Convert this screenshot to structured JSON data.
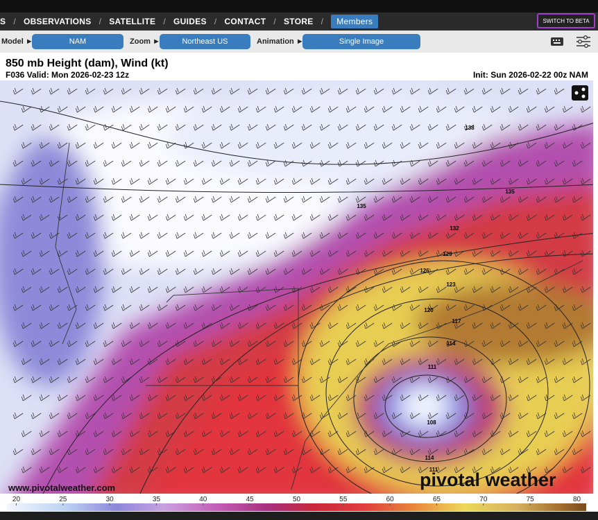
{
  "nav": {
    "items": [
      "S",
      "OBSERVATIONS",
      "SATELLITE",
      "GUIDES",
      "CONTACT",
      "STORE"
    ],
    "members": "Members",
    "beta": "SWITCH TO BETA"
  },
  "toolbar": {
    "model": {
      "label": "Model",
      "value": "NAM"
    },
    "zoom": {
      "label": "Zoom",
      "value": "Northeast US"
    },
    "animation": {
      "label": "Animation",
      "value": "Single Image"
    }
  },
  "map": {
    "title": "850 mb Height (dam), Wind (kt)",
    "valid": "F036 Valid: Mon 2026-02-23 12z",
    "init": "Init: Sun 2026-02-22 00z NAM",
    "contour_labels": [
      138,
      135,
      135,
      132,
      129,
      126,
      123,
      120,
      117,
      114,
      111,
      108,
      114,
      111
    ],
    "watermark_url": "www.pivotalweather.com",
    "watermark_logo": "pivotal weather"
  },
  "colorbar": {
    "lim": [
      19,
      81
    ],
    "ticks": [
      20,
      25,
      30,
      35,
      40,
      45,
      50,
      55,
      60,
      65,
      70,
      75,
      80
    ]
  }
}
